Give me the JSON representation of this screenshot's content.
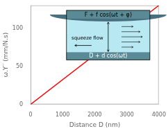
{
  "chart_data": {
    "type": "line",
    "xlabel": "Distance D (nm)",
    "ylabel": "ω.Y′′ (mm/N.s)",
    "x": [
      0,
      4000
    ],
    "values": [
      0,
      130
    ],
    "color": "red",
    "xlim": [
      0,
      4000
    ],
    "ylim": [
      0,
      130
    ],
    "xticks": [
      0,
      1000,
      2000,
      3000,
      4000
    ],
    "yticks": [
      0,
      50,
      100
    ],
    "grid": false,
    "annotations": [
      "F + f cos(ωt + φ)",
      "squeeze flow",
      "D + d cos(ωt)"
    ]
  }
}
